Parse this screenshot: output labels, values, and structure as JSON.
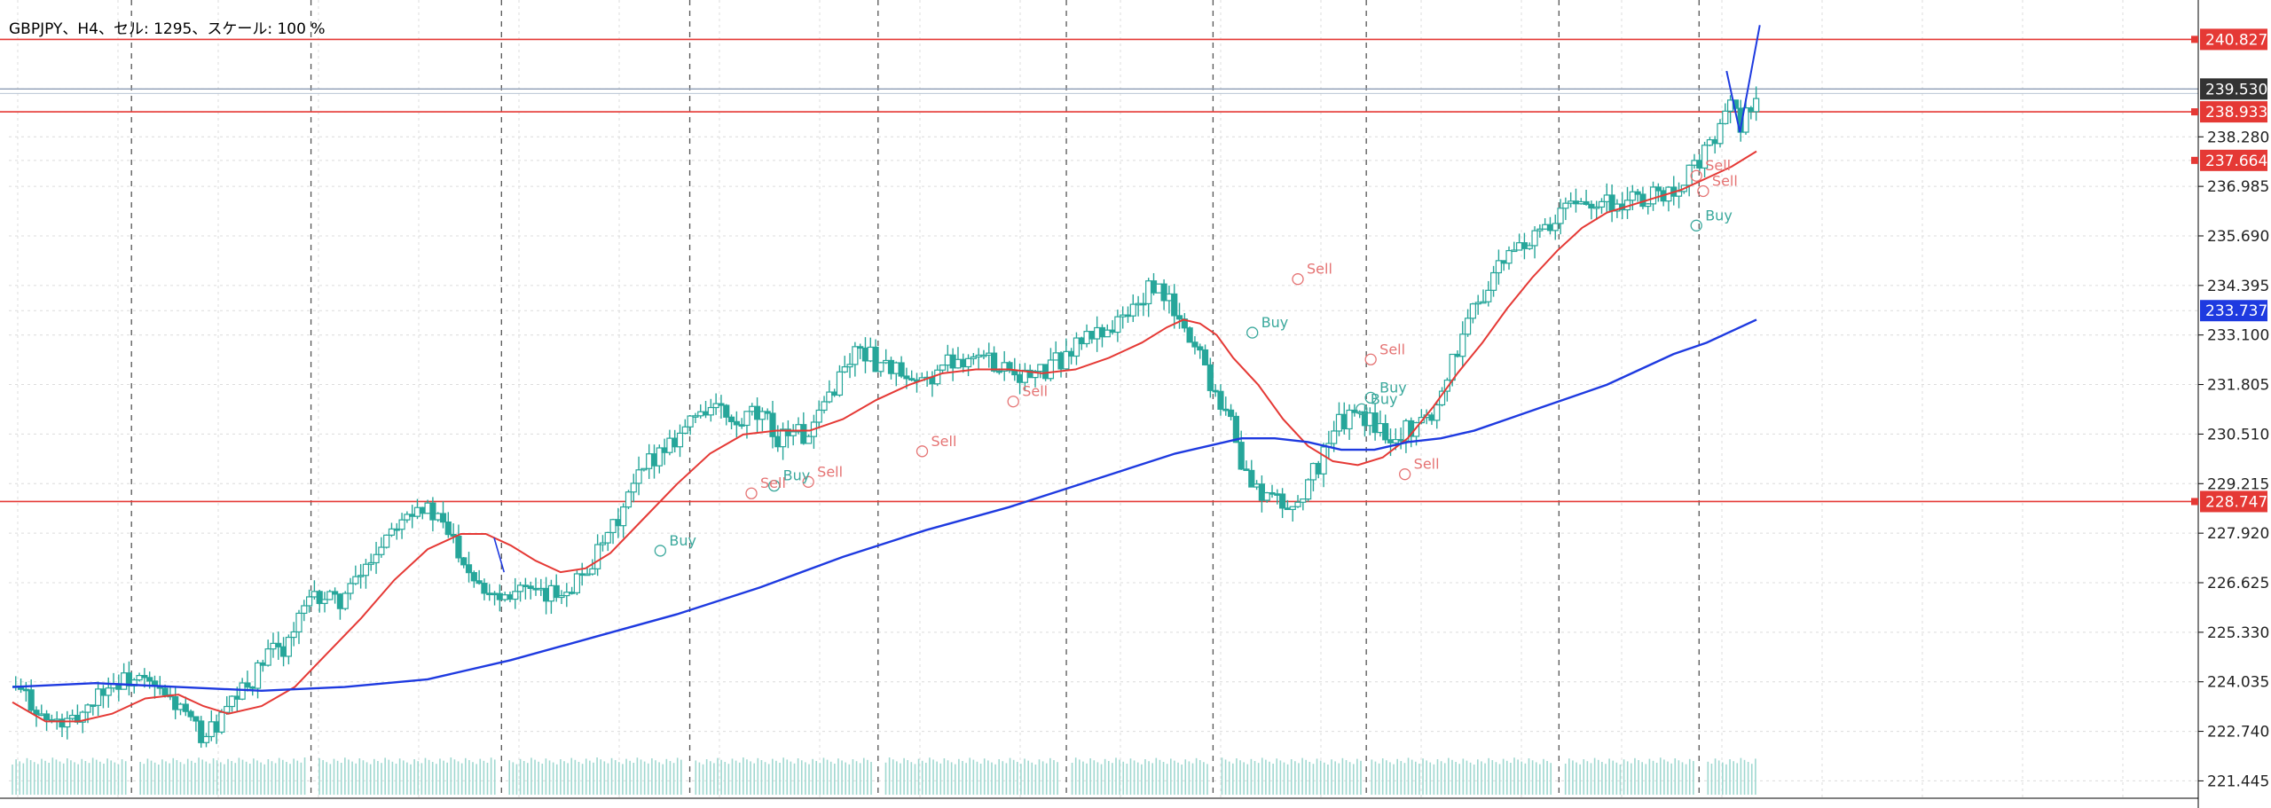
{
  "header": {
    "info": "GBPJPY、H4、セル: 1295、スケール: 100 %"
  },
  "colors": {
    "background": "#ffffff",
    "candle": "#26a69a",
    "grid": "#dcdcdc",
    "ma_fast": "#e53935",
    "ma_slow": "#1e3ae0",
    "hline_red": "#e53935",
    "hline_gray": "#8c9cb4",
    "volume": "#9fd8d0",
    "label_red_bg": "#e53935",
    "label_dark_bg": "#333333",
    "label_blue_bg": "#1e3ae0"
  },
  "chart_data": {
    "type": "candlestick",
    "symbol": "GBPJPY",
    "timeframe": "H4",
    "ylim": [
      221.2,
      241.3
    ],
    "y_ticks": [
      "240.827",
      "239.530",
      "238.933",
      "238.280",
      "237.664",
      "236.985",
      "235.690",
      "234.395",
      "233.737",
      "233.100",
      "231.805",
      "230.510",
      "229.215",
      "228.747",
      "227.920",
      "226.625",
      "225.330",
      "224.035",
      "222.740",
      "221.445"
    ],
    "price_labels": [
      {
        "value": 240.827,
        "text": "240.827",
        "style": "red"
      },
      {
        "value": 239.53,
        "text": "239.530",
        "style": "dark"
      },
      {
        "value": 238.933,
        "text": "238.933",
        "style": "red"
      },
      {
        "value": 237.664,
        "text": "237.664",
        "style": "red"
      },
      {
        "value": 233.737,
        "text": "233.737",
        "style": "blue"
      },
      {
        "value": 228.747,
        "text": "228.747",
        "style": "red"
      }
    ],
    "horizontal_lines": [
      {
        "value": 240.827,
        "color": "red"
      },
      {
        "value": 239.53,
        "color": "gray"
      },
      {
        "value": 238.933,
        "color": "red"
      },
      {
        "value": 228.747,
        "color": "red"
      }
    ],
    "close_path": [
      [
        0,
        223.9
      ],
      [
        10,
        223.6
      ],
      [
        20,
        223.0
      ],
      [
        35,
        222.9
      ],
      [
        45,
        223.4
      ],
      [
        55,
        223.9
      ],
      [
        70,
        224.1
      ],
      [
        80,
        224.0
      ],
      [
        90,
        223.7
      ],
      [
        100,
        223.4
      ],
      [
        110,
        222.8
      ],
      [
        115,
        222.6
      ],
      [
        125,
        223.0
      ],
      [
        135,
        223.6
      ],
      [
        145,
        224.1
      ],
      [
        155,
        224.8
      ],
      [
        165,
        225.0
      ],
      [
        175,
        225.9
      ],
      [
        185,
        226.3
      ],
      [
        195,
        226.1
      ],
      [
        205,
        226.5
      ],
      [
        215,
        227.2
      ],
      [
        225,
        227.9
      ],
      [
        235,
        228.5
      ],
      [
        245,
        228.7
      ],
      [
        255,
        228.3
      ],
      [
        265,
        227.8
      ],
      [
        275,
        227.0
      ],
      [
        285,
        226.5
      ],
      [
        295,
        226.3
      ],
      [
        305,
        226.6
      ],
      [
        315,
        226.2
      ],
      [
        325,
        226.3
      ],
      [
        340,
        226.7
      ],
      [
        355,
        227.5
      ],
      [
        365,
        228.3
      ],
      [
        375,
        229.2
      ],
      [
        385,
        229.9
      ],
      [
        395,
        230.3
      ],
      [
        405,
        230.7
      ],
      [
        415,
        231.2
      ],
      [
        425,
        231.2
      ],
      [
        435,
        230.6
      ],
      [
        445,
        231.0
      ],
      [
        455,
        230.8
      ],
      [
        460,
        230.4
      ],
      [
        470,
        230.7
      ],
      [
        480,
        230.3
      ],
      [
        490,
        231.4
      ],
      [
        500,
        232.2
      ],
      [
        510,
        232.8
      ],
      [
        520,
        232.4
      ],
      [
        530,
        232.3
      ],
      [
        540,
        231.7
      ],
      [
        550,
        231.9
      ],
      [
        560,
        232.3
      ],
      [
        570,
        232.5
      ],
      [
        580,
        232.6
      ],
      [
        590,
        232.4
      ],
      [
        600,
        232.3
      ],
      [
        610,
        232.0
      ],
      [
        620,
        232.1
      ],
      [
        635,
        232.6
      ],
      [
        645,
        233.0
      ],
      [
        655,
        233.2
      ],
      [
        665,
        233.4
      ],
      [
        675,
        233.8
      ],
      [
        685,
        234.3
      ],
      [
        695,
        234.1
      ],
      [
        705,
        233.2
      ],
      [
        715,
        232.7
      ],
      [
        720,
        232.0
      ],
      [
        725,
        231.6
      ],
      [
        735,
        230.8
      ],
      [
        740,
        229.6
      ],
      [
        750,
        229.0
      ],
      [
        760,
        228.8
      ],
      [
        770,
        228.5
      ],
      [
        775,
        228.9
      ],
      [
        785,
        229.6
      ],
      [
        795,
        230.6
      ],
      [
        805,
        231.0
      ],
      [
        815,
        230.9
      ],
      [
        825,
        230.6
      ],
      [
        835,
        230.5
      ],
      [
        845,
        230.8
      ],
      [
        855,
        231.0
      ],
      [
        865,
        232.2
      ],
      [
        875,
        233.4
      ],
      [
        885,
        234.2
      ],
      [
        895,
        234.8
      ],
      [
        905,
        235.4
      ],
      [
        915,
        235.6
      ],
      [
        925,
        235.8
      ],
      [
        935,
        236.4
      ],
      [
        945,
        236.6
      ],
      [
        955,
        236.7
      ],
      [
        965,
        236.5
      ],
      [
        975,
        236.6
      ],
      [
        985,
        236.7
      ],
      [
        995,
        236.8
      ],
      [
        1005,
        237.1
      ],
      [
        1015,
        237.6
      ],
      [
        1025,
        238.2
      ],
      [
        1030,
        238.9
      ],
      [
        1035,
        239.0
      ],
      [
        1040,
        238.6
      ],
      [
        1045,
        239.0
      ],
      [
        1050,
        239.1
      ]
    ],
    "ma_fast": [
      [
        0,
        223.5
      ],
      [
        20,
        223.0
      ],
      [
        40,
        223.0
      ],
      [
        60,
        223.2
      ],
      [
        80,
        223.6
      ],
      [
        100,
        223.7
      ],
      [
        115,
        223.4
      ],
      [
        130,
        223.2
      ],
      [
        150,
        223.4
      ],
      [
        170,
        223.9
      ],
      [
        190,
        224.8
      ],
      [
        210,
        225.7
      ],
      [
        230,
        226.7
      ],
      [
        250,
        227.5
      ],
      [
        270,
        227.9
      ],
      [
        285,
        227.9
      ],
      [
        300,
        227.6
      ],
      [
        315,
        227.2
      ],
      [
        330,
        226.9
      ],
      [
        345,
        227.0
      ],
      [
        360,
        227.4
      ],
      [
        380,
        228.3
      ],
      [
        400,
        229.2
      ],
      [
        420,
        230.0
      ],
      [
        440,
        230.5
      ],
      [
        460,
        230.6
      ],
      [
        480,
        230.6
      ],
      [
        500,
        230.9
      ],
      [
        520,
        231.4
      ],
      [
        540,
        231.8
      ],
      [
        560,
        232.1
      ],
      [
        580,
        232.2
      ],
      [
        600,
        232.2
      ],
      [
        620,
        232.1
      ],
      [
        640,
        232.2
      ],
      [
        660,
        232.5
      ],
      [
        680,
        232.9
      ],
      [
        695,
        233.3
      ],
      [
        705,
        233.5
      ],
      [
        715,
        233.4
      ],
      [
        725,
        233.1
      ],
      [
        735,
        232.5
      ],
      [
        750,
        231.8
      ],
      [
        765,
        230.9
      ],
      [
        780,
        230.2
      ],
      [
        795,
        229.8
      ],
      [
        810,
        229.7
      ],
      [
        825,
        229.9
      ],
      [
        840,
        230.4
      ],
      [
        855,
        231.2
      ],
      [
        870,
        232.1
      ],
      [
        885,
        232.9
      ],
      [
        900,
        233.8
      ],
      [
        915,
        234.6
      ],
      [
        930,
        235.3
      ],
      [
        945,
        235.9
      ],
      [
        960,
        236.3
      ],
      [
        975,
        236.5
      ],
      [
        990,
        236.7
      ],
      [
        1005,
        236.9
      ],
      [
        1020,
        237.2
      ],
      [
        1035,
        237.5
      ],
      [
        1050,
        237.9
      ]
    ],
    "ma_slow": [
      [
        0,
        223.9
      ],
      [
        50,
        224.0
      ],
      [
        100,
        223.9
      ],
      [
        150,
        223.8
      ],
      [
        200,
        223.9
      ],
      [
        250,
        224.1
      ],
      [
        300,
        224.6
      ],
      [
        350,
        225.2
      ],
      [
        400,
        225.8
      ],
      [
        450,
        226.5
      ],
      [
        500,
        227.3
      ],
      [
        550,
        228.0
      ],
      [
        600,
        228.6
      ],
      [
        650,
        229.3
      ],
      [
        700,
        230.0
      ],
      [
        740,
        230.4
      ],
      [
        760,
        230.4
      ],
      [
        780,
        230.3
      ],
      [
        800,
        230.1
      ],
      [
        820,
        230.1
      ],
      [
        840,
        230.3
      ],
      [
        860,
        230.4
      ],
      [
        880,
        230.6
      ],
      [
        900,
        230.9
      ],
      [
        920,
        231.2
      ],
      [
        940,
        231.5
      ],
      [
        960,
        231.8
      ],
      [
        980,
        232.2
      ],
      [
        1000,
        232.6
      ],
      [
        1020,
        232.9
      ],
      [
        1050,
        233.5
      ]
    ],
    "signals": [
      {
        "text": "Sell",
        "value": 231.5,
        "anchor": 0.445,
        "color": "red"
      },
      {
        "text": "Sell",
        "value": 230.2,
        "anchor": 0.405,
        "color": "red"
      },
      {
        "text": "Sell",
        "value": 229.4,
        "anchor": 0.355,
        "color": "red"
      },
      {
        "text": "Buy",
        "value": 229.3,
        "anchor": 0.34,
        "color": "teal"
      },
      {
        "text": "Sell",
        "value": 229.1,
        "anchor": 0.33,
        "color": "red"
      },
      {
        "text": "Buy",
        "value": 227.6,
        "anchor": 0.29,
        "color": "teal"
      },
      {
        "text": "Buy",
        "value": 233.3,
        "anchor": 0.55,
        "color": "teal"
      },
      {
        "text": "Sell",
        "value": 234.7,
        "anchor": 0.57,
        "color": "red"
      },
      {
        "text": "Sell",
        "value": 232.6,
        "anchor": 0.602,
        "color": "red"
      },
      {
        "text": "Buy",
        "value": 231.6,
        "anchor": 0.602,
        "color": "teal"
      },
      {
        "text": "Buy",
        "value": 231.3,
        "anchor": 0.598,
        "color": "teal"
      },
      {
        "text": "Sell",
        "value": 229.6,
        "anchor": 0.617,
        "color": "red"
      },
      {
        "text": "Sell",
        "value": 237.4,
        "anchor": 0.745,
        "color": "red"
      },
      {
        "text": "Sell",
        "value": 237.0,
        "anchor": 0.748,
        "color": "red"
      },
      {
        "text": "Buy",
        "value": 236.1,
        "anchor": 0.745,
        "color": "teal"
      }
    ]
  }
}
